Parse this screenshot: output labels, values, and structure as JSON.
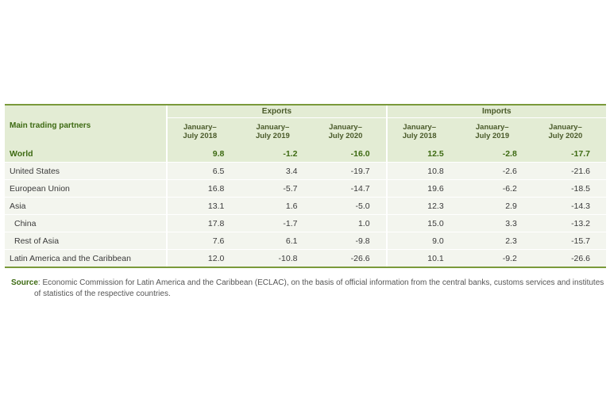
{
  "table": {
    "partners_header": "Main trading partners",
    "groups": [
      "Exports",
      "Imports"
    ],
    "periods": [
      "January–\nJuly 2018",
      "January–\nJuly 2019",
      "January–\nJuly 2020"
    ],
    "rows": [
      {
        "label": "World",
        "values": [
          "9.8",
          "-1.2",
          "-16.0",
          "12.5",
          "-2.8",
          "-17.7"
        ]
      },
      {
        "label": "United States",
        "values": [
          "6.5",
          "3.4",
          "-19.7",
          "10.8",
          "-2.6",
          "-21.6"
        ]
      },
      {
        "label": "European Union",
        "values": [
          "16.8",
          "-5.7",
          "-14.7",
          "19.6",
          "-6.2",
          "-18.5"
        ]
      },
      {
        "label": "Asia",
        "values": [
          "13.1",
          "1.6",
          "-5.0",
          "12.3",
          "2.9",
          "-14.3"
        ]
      },
      {
        "label": "China",
        "values": [
          "17.8",
          "-1.7",
          "1.0",
          "15.0",
          "3.3",
          "-13.2"
        ]
      },
      {
        "label": "Rest of Asia",
        "values": [
          "7.6",
          "6.1",
          "-9.8",
          "9.0",
          "2.3",
          "-15.7"
        ]
      },
      {
        "label": "Latin America and the Caribbean",
        "values": [
          "12.0",
          "-10.8",
          "-26.6",
          "10.1",
          "-9.2",
          "-26.6"
        ]
      }
    ]
  },
  "source": {
    "label": "Source",
    "line1": ": Economic Commission for Latin America and the Caribbean (ECLAC), on the basis of official information from the central banks, customs services and institutes",
    "line2": "of statistics of the respective countries."
  },
  "colors": {
    "accent_green": "#3d6a12",
    "header_fill": "#e3ecd4",
    "row_fill": "#f3f5ee",
    "rule": "#7a9a3a"
  }
}
